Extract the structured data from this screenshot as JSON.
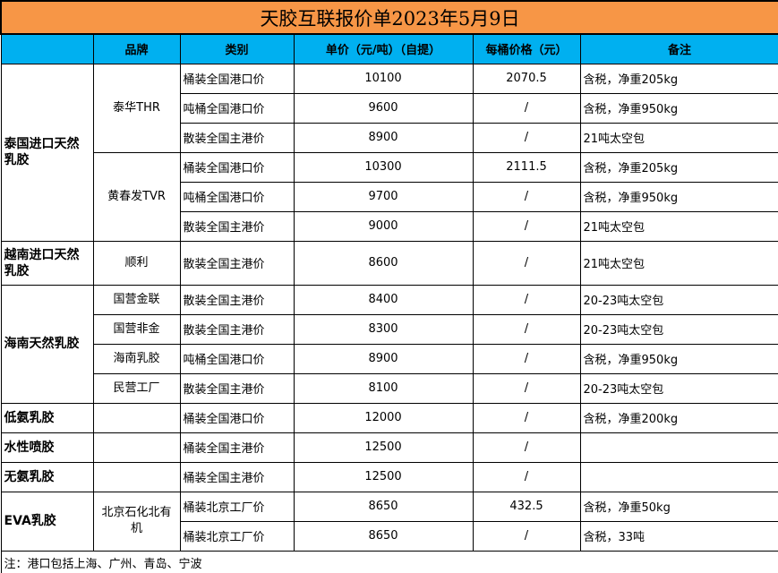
{
  "title": "天胶互联报价单2023年5月9日",
  "header": [
    "",
    "品牌",
    "类别",
    "单价（元/吨）（自提）",
    "每桶价格（元）",
    "备注"
  ],
  "groups": [
    {
      "name": "泰国进口天然乳胶",
      "brands": [
        {
          "name": "泰华THR",
          "items": [
            {
              "type": "桶装全国港口价",
              "price": "10100",
              "barrel": "2070.5",
              "note": "含税，净重205kg"
            },
            {
              "type": "吨桶全国港口价",
              "price": "9600",
              "barrel": "/",
              "note": "含税，净重950kg"
            },
            {
              "type": "散装全国主港价",
              "price": "8900",
              "barrel": "/",
              "note": "21吨太空包"
            }
          ]
        },
        {
          "name": "黄春发TVR",
          "items": [
            {
              "type": "桶装全国港口价",
              "price": "10300",
              "barrel": "2111.5",
              "note": "含税，净重205kg"
            },
            {
              "type": "吨桶全国港口价",
              "price": "9700",
              "barrel": "/",
              "note": "含税，净重950kg"
            },
            {
              "type": "散装全国主港价",
              "price": "9000",
              "barrel": "/",
              "note": "21吨太空包"
            }
          ]
        }
      ]
    },
    {
      "name": "越南进口天然乳胶",
      "tall": true,
      "brands": [
        {
          "name": "顺利",
          "items": [
            {
              "type": " 散装全国主港价",
              "price": "8600",
              "barrel": "/",
              "note": "21吨太空包"
            }
          ]
        }
      ]
    },
    {
      "name": "海南天然乳胶",
      "brands": [
        {
          "name": "国营金联",
          "items": [
            {
              "type": "散装全国主港价",
              "price": "8400",
              "barrel": "/",
              "note": "20-23吨太空包"
            }
          ]
        },
        {
          "name": "国营非金",
          "items": [
            {
              "type": "散装全国主港价",
              "price": "8300",
              "barrel": "/",
              "note": "20-23吨太空包"
            }
          ]
        },
        {
          "name": "海南乳胶",
          "items": [
            {
              "type": "吨桶全国港口价",
              "price": "8900",
              "barrel": "/",
              "note": "含税，净重950kg"
            }
          ]
        },
        {
          "name": "民营工厂",
          "items": [
            {
              "type": "散装全国主港价",
              "price": "8100",
              "barrel": "/",
              "note": "20-23吨太空包"
            }
          ]
        }
      ]
    },
    {
      "name": "低氨乳胶",
      "brands": [
        {
          "name": "",
          "items": [
            {
              "type": "桶装全国港口价",
              "price": "12000",
              "barrel": "/",
              "note": "含税，净重200kg"
            }
          ]
        }
      ]
    },
    {
      "name": "水性喷胶",
      "brands": [
        {
          "name": "",
          "items": [
            {
              "type": "桶装全国主港价",
              "price": "12500",
              "barrel": "/",
              "note": ""
            }
          ]
        }
      ]
    },
    {
      "name": "无氨乳胶",
      "brands": [
        {
          "name": "",
          "items": [
            {
              "type": "桶装全国主港价",
              "price": "12500",
              "barrel": "/",
              "note": ""
            }
          ]
        }
      ]
    },
    {
      "name": "EVA乳胶",
      "brands": [
        {
          "name": "北京石化北有机",
          "items": [
            {
              "type": "桶装北京工厂价",
              "price": "8650",
              "barrel": "432.5",
              "note": "含税，净重50kg"
            },
            {
              "type": "桶装北京工厂价",
              "price": "8650",
              "barrel": "/",
              "note": "含税，33吨"
            }
          ]
        }
      ]
    }
  ],
  "footnote": "注：港口包括上海、广州、青岛、宁波",
  "colors": {
    "title_bg": "#F79646",
    "header_bg": "#00B0F0"
  }
}
